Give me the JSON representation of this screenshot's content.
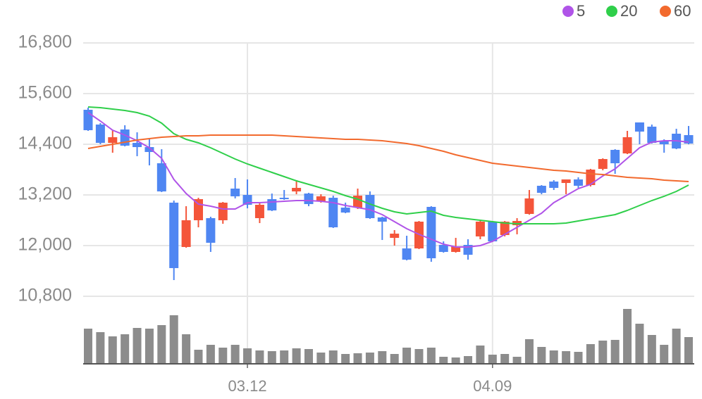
{
  "chart_data": {
    "type": "candlestick",
    "categories": [
      null,
      null,
      null,
      null,
      null,
      null,
      null,
      null,
      null,
      null,
      null,
      null,
      null,
      "03.12",
      null,
      null,
      null,
      null,
      null,
      null,
      null,
      null,
      null,
      null,
      null,
      null,
      null,
      null,
      null,
      null,
      null,
      null,
      null,
      "04.09",
      null,
      null,
      null,
      null,
      null,
      null,
      null,
      null,
      null,
      null,
      null,
      null,
      null,
      null,
      null,
      null
    ],
    "open": [
      15217,
      14867,
      14433,
      14750,
      14433,
      14333,
      13950,
      13017,
      11967,
      12600,
      12650,
      12600,
      13350,
      13200,
      12650,
      13100,
      13133,
      13283,
      13233,
      13050,
      13133,
      12900,
      12900,
      13200,
      12667,
      12183,
      11933,
      11933,
      12917,
      12017,
      11850,
      12017,
      12217,
      12567,
      12250,
      12483,
      12750,
      13417,
      13517,
      13483,
      13567,
      13433,
      13817,
      14267,
      14183,
      14917,
      14817,
      14483,
      14650,
      14617
    ],
    "high": [
      15267,
      14900,
      14733,
      14850,
      14683,
      14533,
      14283,
      13067,
      12933,
      13133,
      12683,
      13033,
      13600,
      13567,
      13017,
      13233,
      13317,
      13550,
      13250,
      13217,
      13183,
      13017,
      13350,
      13283,
      12683,
      12367,
      12233,
      12583,
      12933,
      12100,
      12183,
      12150,
      12583,
      12583,
      12583,
      12650,
      13317,
      13433,
      13550,
      13567,
      13617,
      13817,
      14067,
      14283,
      14717,
      14917,
      14867,
      14517,
      14767,
      14833
    ],
    "low": [
      14717,
      14400,
      14200,
      14350,
      14117,
      13900,
      13267,
      11183,
      11950,
      12433,
      11850,
      12517,
      13117,
      12883,
      12533,
      12817,
      13083,
      13217,
      12933,
      13017,
      12417,
      12767,
      12867,
      12633,
      12133,
      12000,
      11650,
      11917,
      11617,
      11833,
      11833,
      11667,
      12150,
      12083,
      12217,
      12267,
      12733,
      13217,
      13317,
      13217,
      13367,
      13400,
      13783,
      13700,
      14167,
      14400,
      14417,
      14200,
      14283,
      14400
    ],
    "close": [
      14733,
      14433,
      14567,
      14367,
      14333,
      14217,
      13283,
      11467,
      12600,
      13100,
      12067,
      13017,
      13167,
      12967,
      12967,
      12833,
      13100,
      13367,
      12983,
      13167,
      12433,
      12783,
      13183,
      12650,
      12567,
      12283,
      11667,
      12567,
      11700,
      11850,
      11983,
      11783,
      12567,
      12100,
      12567,
      12583,
      13117,
      13250,
      13367,
      13567,
      13417,
      13800,
      14050,
      13950,
      14567,
      14700,
      14433,
      14400,
      14300,
      14417
    ],
    "up_color": "#f4553a",
    "down_color": "#4f86f2",
    "series": [
      {
        "name": "5",
        "color": "#b054e8",
        "values": [
          15150,
          14950,
          14733,
          14617,
          14483,
          14317,
          14067,
          13567,
          13233,
          12983,
          12933,
          12867,
          12867,
          13017,
          13017,
          13033,
          13050,
          13067,
          13067,
          13050,
          13017,
          12950,
          12900,
          12850,
          12733,
          12567,
          12400,
          12267,
          12150,
          12033,
          11967,
          11967,
          12000,
          12100,
          12267,
          12433,
          12600,
          12767,
          13017,
          13183,
          13350,
          13450,
          13650,
          13817,
          14067,
          14317,
          14450,
          14483,
          14483,
          14450
        ]
      },
      {
        "name": "20",
        "color": "#2fcf4a",
        "values": [
          15283,
          15267,
          15233,
          15200,
          15150,
          15067,
          14900,
          14650,
          14517,
          14433,
          14317,
          14183,
          14050,
          13933,
          13833,
          13733,
          13633,
          13533,
          13450,
          13367,
          13283,
          13183,
          13100,
          12983,
          12883,
          12800,
          12750,
          12783,
          12817,
          12717,
          12667,
          12633,
          12600,
          12567,
          12533,
          12517,
          12517,
          12517,
          12517,
          12533,
          12583,
          12633,
          12683,
          12733,
          12833,
          12950,
          13067,
          13167,
          13283,
          13433
        ]
      },
      {
        "name": "60",
        "color": "#f26a2e",
        "values": [
          14300,
          14350,
          14400,
          14450,
          14500,
          14533,
          14567,
          14583,
          14600,
          14600,
          14617,
          14617,
          14617,
          14617,
          14617,
          14617,
          14600,
          14583,
          14567,
          14550,
          14533,
          14517,
          14517,
          14500,
          14483,
          14450,
          14417,
          14367,
          14300,
          14233,
          14150,
          14083,
          14017,
          13950,
          13917,
          13883,
          13850,
          13817,
          13783,
          13767,
          13733,
          13700,
          13683,
          13650,
          13617,
          13600,
          13583,
          13550,
          13533,
          13517
        ]
      }
    ],
    "volume": {
      "color": "#8c8c8c",
      "ylim": [
        0,
        80
      ],
      "values": [
        50,
        45,
        39,
        42,
        51,
        50,
        55,
        69,
        42,
        20,
        27,
        23,
        27,
        22,
        19,
        18,
        19,
        22,
        21,
        16,
        19,
        14,
        15,
        16,
        18,
        14,
        23,
        21,
        23,
        10,
        9,
        11,
        26,
        13,
        14,
        10,
        35,
        24,
        19,
        18,
        17,
        28,
        33,
        34,
        78,
        57,
        41,
        27,
        50,
        38
      ]
    },
    "ylim": [
      10650,
      17150
    ],
    "yticks": [
      {
        "value": 10800,
        "label": "10,800"
      },
      {
        "value": 12000,
        "label": "12,000"
      },
      {
        "value": 13200,
        "label": "13,200"
      },
      {
        "value": 14400,
        "label": "14,400"
      },
      {
        "value": 15600,
        "label": "15,600"
      },
      {
        "value": 16800,
        "label": "16,800"
      }
    ],
    "grid": true
  }
}
